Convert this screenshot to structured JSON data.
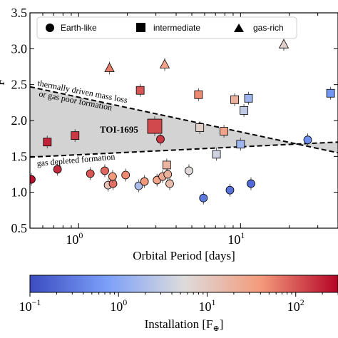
{
  "chart_data": {
    "type": "scatter",
    "xlabel": "Orbital Period [days]",
    "ylabel_partial": "F",
    "x_scale": "log",
    "xlim": [
      0.5,
      40
    ],
    "ylim": [
      0.5,
      3.5
    ],
    "x_ticks": [
      {
        "value": 1,
        "label": "10",
        "exp": "0"
      },
      {
        "value": 10,
        "label": "10",
        "exp": "1"
      }
    ],
    "y_ticks": [
      "0.5",
      "1.0",
      "1.5",
      "2.0",
      "2.5",
      "3.0",
      "3.5"
    ],
    "legend": {
      "placement": "top",
      "entries": [
        {
          "label": "Earth-like",
          "marker": "circle"
        },
        {
          "label": "intermediate",
          "marker": "square"
        },
        {
          "label": "gas-rich",
          "marker": "triangle"
        }
      ]
    },
    "annotations": {
      "upper_line_1": "thermally driven mass loss",
      "upper_line_2": "or gas poor formation",
      "lower_line": "gas depleted formation",
      "highlight": "TOI-1695"
    },
    "boundaries": {
      "upper": [
        [
          0.5,
          2.47
        ],
        [
          40,
          1.55
        ]
      ],
      "lower": [
        [
          0.5,
          1.49
        ],
        [
          40,
          1.7
        ]
      ]
    },
    "colorbar": {
      "label": "Installation [F",
      "label_symbol": "⊕",
      "label_end": "]",
      "scale": "log",
      "range": [
        0.1,
        300
      ],
      "colormap": "coolwarm",
      "ticks": [
        {
          "value": 0.1,
          "label": "10",
          "exp": "−1"
        },
        {
          "value": 1,
          "label": "10",
          "exp": "0"
        },
        {
          "value": 10,
          "label": "10",
          "exp": "1"
        },
        {
          "value": 100,
          "label": "10",
          "exp": "2"
        }
      ]
    },
    "points": [
      {
        "p": 0.51,
        "y": 1.18,
        "ins": 250,
        "m": "circle"
      },
      {
        "p": 0.64,
        "y": 1.7,
        "ins": 200,
        "m": "square"
      },
      {
        "p": 0.74,
        "y": 1.32,
        "ins": 180,
        "m": "circle"
      },
      {
        "p": 0.95,
        "y": 1.79,
        "ins": 150,
        "m": "square"
      },
      {
        "p": 1.18,
        "y": 1.26,
        "ins": 100,
        "m": "circle"
      },
      {
        "p": 1.45,
        "y": 1.3,
        "ins": 80,
        "m": "circle"
      },
      {
        "p": 1.52,
        "y": 1.1,
        "ins": 12,
        "m": "circle"
      },
      {
        "p": 1.55,
        "y": 2.73,
        "ins": 60,
        "m": "triangle"
      },
      {
        "p": 1.63,
        "y": 1.12,
        "ins": 70,
        "m": "circle"
      },
      {
        "p": 1.62,
        "y": 1.22,
        "ins": 40,
        "m": "circle"
      },
      {
        "p": 1.95,
        "y": 1.24,
        "ins": 50,
        "m": "circle"
      },
      {
        "p": 2.35,
        "y": 1.09,
        "ins": 2,
        "m": "circle"
      },
      {
        "p": 2.4,
        "y": 2.42,
        "ins": 100,
        "m": "square"
      },
      {
        "p": 2.55,
        "y": 1.15,
        "ins": 40,
        "m": "circle"
      },
      {
        "p": 2.95,
        "y": 1.92,
        "ins": 120,
        "m": "square",
        "size": "large",
        "name": "TOI-1695"
      },
      {
        "p": 3.05,
        "y": 1.17,
        "ins": 30,
        "m": "circle"
      },
      {
        "p": 3.2,
        "y": 1.74,
        "ins": 150,
        "m": "circle"
      },
      {
        "p": 3.3,
        "y": 1.22,
        "ins": 25,
        "m": "circle"
      },
      {
        "p": 3.4,
        "y": 2.78,
        "ins": 30,
        "m": "triangle"
      },
      {
        "p": 3.5,
        "y": 1.38,
        "ins": 18,
        "m": "square"
      },
      {
        "p": 3.55,
        "y": 1.25,
        "ins": 20,
        "m": "circle"
      },
      {
        "p": 3.65,
        "y": 1.12,
        "ins": 15,
        "m": "circle"
      },
      {
        "p": 4.8,
        "y": 1.3,
        "ins": 6,
        "m": "circle"
      },
      {
        "p": 5.5,
        "y": 2.36,
        "ins": 50,
        "m": "square"
      },
      {
        "p": 5.6,
        "y": 1.9,
        "ins": 8,
        "m": "square"
      },
      {
        "p": 5.9,
        "y": 0.92,
        "ins": 0.3,
        "m": "circle"
      },
      {
        "p": 7.1,
        "y": 1.53,
        "ins": 4,
        "m": "square"
      },
      {
        "p": 7.9,
        "y": 1.85,
        "ins": 30,
        "m": "square"
      },
      {
        "p": 8.6,
        "y": 1.03,
        "ins": 0.25,
        "m": "circle"
      },
      {
        "p": 9.2,
        "y": 2.29,
        "ins": 20,
        "m": "square"
      },
      {
        "p": 10.0,
        "y": 1.67,
        "ins": 1.5,
        "m": "square"
      },
      {
        "p": 10.5,
        "y": 2.14,
        "ins": 3,
        "m": "square"
      },
      {
        "p": 11.2,
        "y": 2.31,
        "ins": 1.5,
        "m": "square"
      },
      {
        "p": 11.6,
        "y": 1.12,
        "ins": 0.2,
        "m": "circle"
      },
      {
        "p": 18.5,
        "y": 3.06,
        "ins": 8,
        "m": "triangle"
      },
      {
        "p": 26.0,
        "y": 1.73,
        "ins": 0.5,
        "m": "circle"
      },
      {
        "p": 36.0,
        "y": 2.38,
        "ins": 0.6,
        "m": "square"
      }
    ]
  }
}
